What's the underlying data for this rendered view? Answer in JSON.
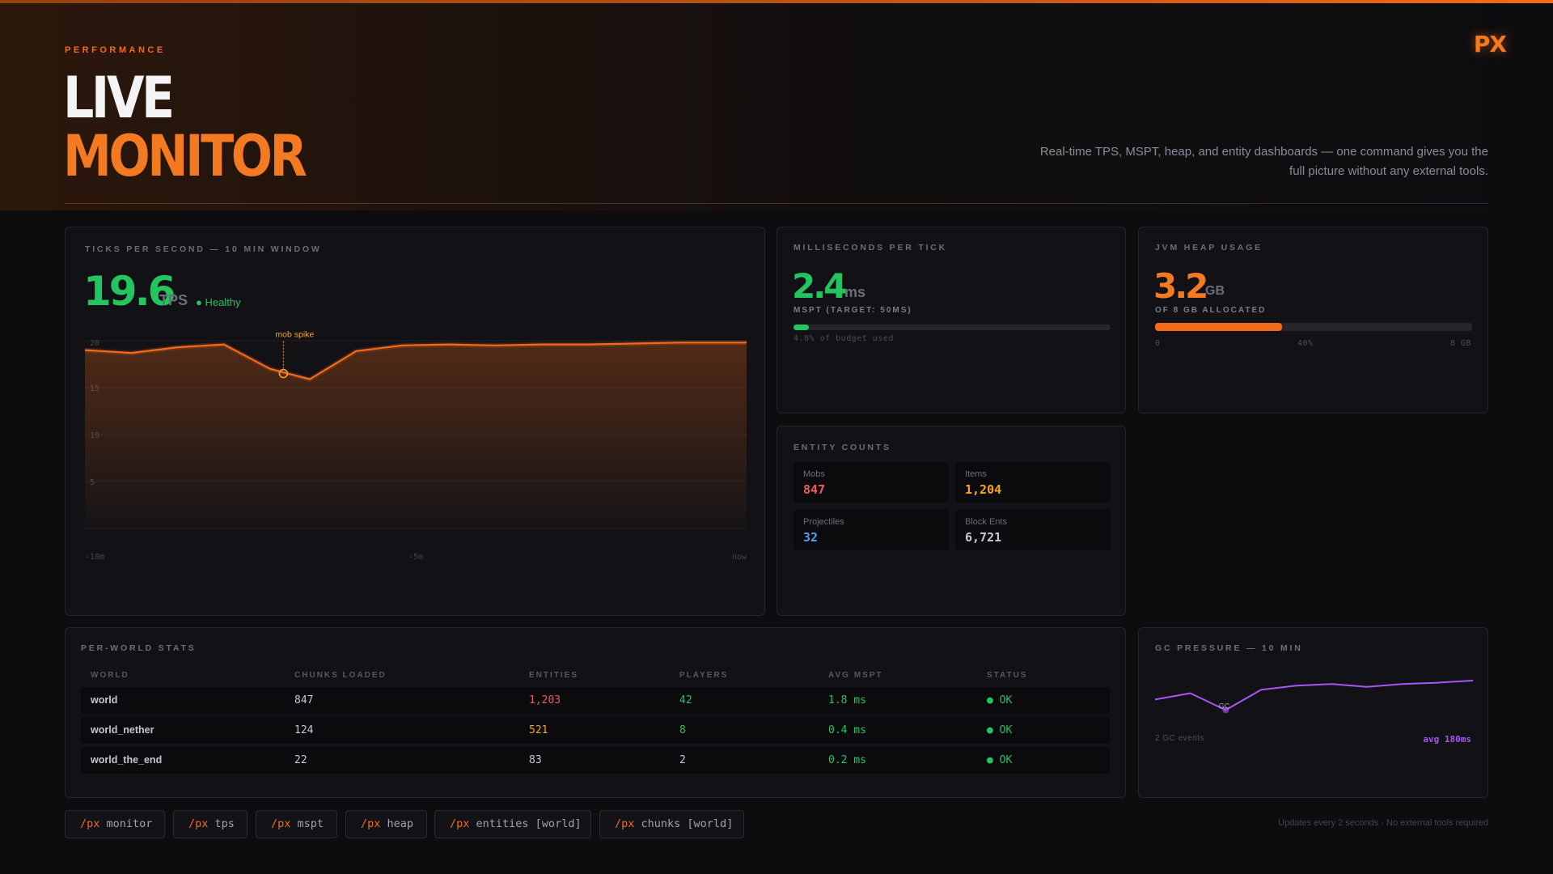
{
  "header": {
    "eyebrow": "PERFORMANCE",
    "title_line1": "LIVE",
    "title_line2": "MONITOR",
    "logo": "PX",
    "tagline": "Real-time TPS, MSPT, heap, and entity dashboards — one command gives you the full picture without any external tools."
  },
  "tps": {
    "label": "TICKS PER SECOND — 10 MIN WINDOW",
    "value": "19.6",
    "unit": "TPS",
    "status": "● Healthy",
    "annotation": "mob spike",
    "chart_data": {
      "type": "area",
      "x": [
        -10,
        -9.3,
        -8.6,
        -7.9,
        -7.2,
        -6.6,
        -5.9,
        -5.2,
        -4.5,
        -3.8,
        -3.1,
        -2.4,
        -1.7,
        -1.0,
        -0.5,
        0
      ],
      "values": [
        19.0,
        18.7,
        19.3,
        19.6,
        17.0,
        15.9,
        18.9,
        19.5,
        19.6,
        19.5,
        19.6,
        19.6,
        19.7,
        19.8,
        19.8,
        19.8
      ],
      "y_ticks": [
        "20",
        "15",
        "10",
        "5"
      ],
      "x_ticks": [
        "-10m",
        "-5m",
        "now"
      ],
      "ylim": [
        0,
        20
      ],
      "grid": true,
      "colors": {
        "line": "#f26a1b",
        "marker": "#f5a623"
      }
    }
  },
  "mspt": {
    "label": "MILLISECONDS PER TICK",
    "value": "2.4",
    "unit": "ms",
    "sub": "MSPT (TARGET: 50MS)",
    "budget_fraction": 0.048,
    "budget_text": "4.8% of budget used",
    "color": "#22c55e"
  },
  "heap": {
    "label": "JVM HEAP USAGE",
    "value": "3.2",
    "unit": "GB",
    "sub": "OF 8 GB ALLOCATED",
    "fraction": 0.4,
    "scale": [
      "0",
      "40%",
      "8 GB"
    ],
    "color": "#f26a1b"
  },
  "entities": {
    "label": "ENTITY COUNTS",
    "items": [
      {
        "name": "Mobs",
        "value": "847",
        "color": "#f05a5a"
      },
      {
        "name": "Items",
        "value": "1,204",
        "color": "#f5a623"
      },
      {
        "name": "Projectiles",
        "value": "32",
        "color": "#5b9cf5"
      },
      {
        "name": "Block Ents",
        "value": "6,721",
        "color": "#c5c8d2"
      }
    ]
  },
  "worlds": {
    "label": "PER-WORLD STATS",
    "columns": [
      "WORLD",
      "CHUNKS LOADED",
      "ENTITIES",
      "PLAYERS",
      "AVG MSPT",
      "STATUS"
    ],
    "rows": [
      {
        "world": "world",
        "chunks": "847",
        "entities": "1,203",
        "players": "42",
        "mspt": "1.8 ms",
        "status": "● OK"
      },
      {
        "world": "world_nether",
        "chunks": "124",
        "entities": "521",
        "players": "8",
        "mspt": "0.4 ms",
        "status": "● OK"
      },
      {
        "world": "world_the_end",
        "chunks": "22",
        "entities": "83",
        "players": "2",
        "mspt": "0.2 ms",
        "status": "● OK"
      }
    ]
  },
  "gc": {
    "label": "GC PRESSURE — 10 MIN",
    "events": "2 GC events",
    "avg": "avg 180ms",
    "marker": "GC",
    "chart_data": {
      "type": "line",
      "x": [
        0,
        1,
        2,
        3,
        4,
        5,
        6,
        7,
        8,
        9
      ],
      "values": [
        0.55,
        0.7,
        0.3,
        0.78,
        0.88,
        0.92,
        0.85,
        0.92,
        0.95,
        1.0
      ],
      "color": "#a855f7"
    }
  },
  "commands": [
    {
      "prefix": "/px",
      "arg": "monitor"
    },
    {
      "prefix": "/px",
      "arg": "tps"
    },
    {
      "prefix": "/px",
      "arg": "mspt"
    },
    {
      "prefix": "/px",
      "arg": "heap"
    },
    {
      "prefix": "/px",
      "arg": "entities [world]"
    },
    {
      "prefix": "/px",
      "arg": "chunks [world]"
    }
  ],
  "footnote": "Updates every 2 seconds · No external tools required"
}
